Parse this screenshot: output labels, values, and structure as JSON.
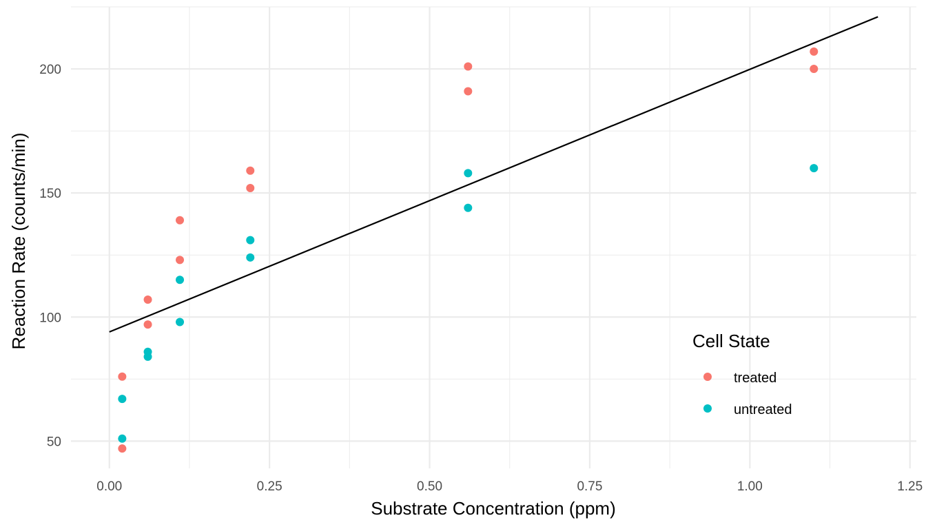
{
  "chart_data": {
    "type": "scatter",
    "title": "",
    "xlabel": "Substrate Concentration (ppm)",
    "ylabel": "Reaction Rate (counts/min)",
    "xlim": [
      -0.06,
      1.26
    ],
    "ylim": [
      39,
      225
    ],
    "x_ticks": [
      0.0,
      0.25,
      0.5,
      0.75,
      1.0,
      1.25
    ],
    "x_tick_labels": [
      "0.00",
      "0.25",
      "0.50",
      "0.75",
      "1.00",
      "1.25"
    ],
    "y_ticks": [
      50,
      100,
      150,
      200
    ],
    "y_tick_labels": [
      "50",
      "100",
      "150",
      "200"
    ],
    "grid": true,
    "legend": {
      "title": "Cell State",
      "position": "bottom-right-inside",
      "entries": [
        "treated",
        "untreated"
      ]
    },
    "series": [
      {
        "name": "treated",
        "color": "#F8766D",
        "points": [
          [
            0.02,
            76
          ],
          [
            0.02,
            47
          ],
          [
            0.06,
            97
          ],
          [
            0.06,
            107
          ],
          [
            0.11,
            123
          ],
          [
            0.11,
            139
          ],
          [
            0.22,
            159
          ],
          [
            0.22,
            152
          ],
          [
            0.56,
            191
          ],
          [
            0.56,
            201
          ],
          [
            1.1,
            207
          ],
          [
            1.1,
            200
          ]
        ]
      },
      {
        "name": "untreated",
        "color": "#00BFC4",
        "points": [
          [
            0.02,
            67
          ],
          [
            0.02,
            51
          ],
          [
            0.06,
            84
          ],
          [
            0.06,
            86
          ],
          [
            0.11,
            98
          ],
          [
            0.11,
            115
          ],
          [
            0.22,
            131
          ],
          [
            0.22,
            124
          ],
          [
            0.56,
            144
          ],
          [
            0.56,
            158
          ],
          [
            1.1,
            160
          ]
        ]
      }
    ],
    "trend_line": {
      "color": "#000000",
      "points": [
        [
          0.0,
          94
        ],
        [
          1.2,
          221
        ]
      ]
    }
  }
}
